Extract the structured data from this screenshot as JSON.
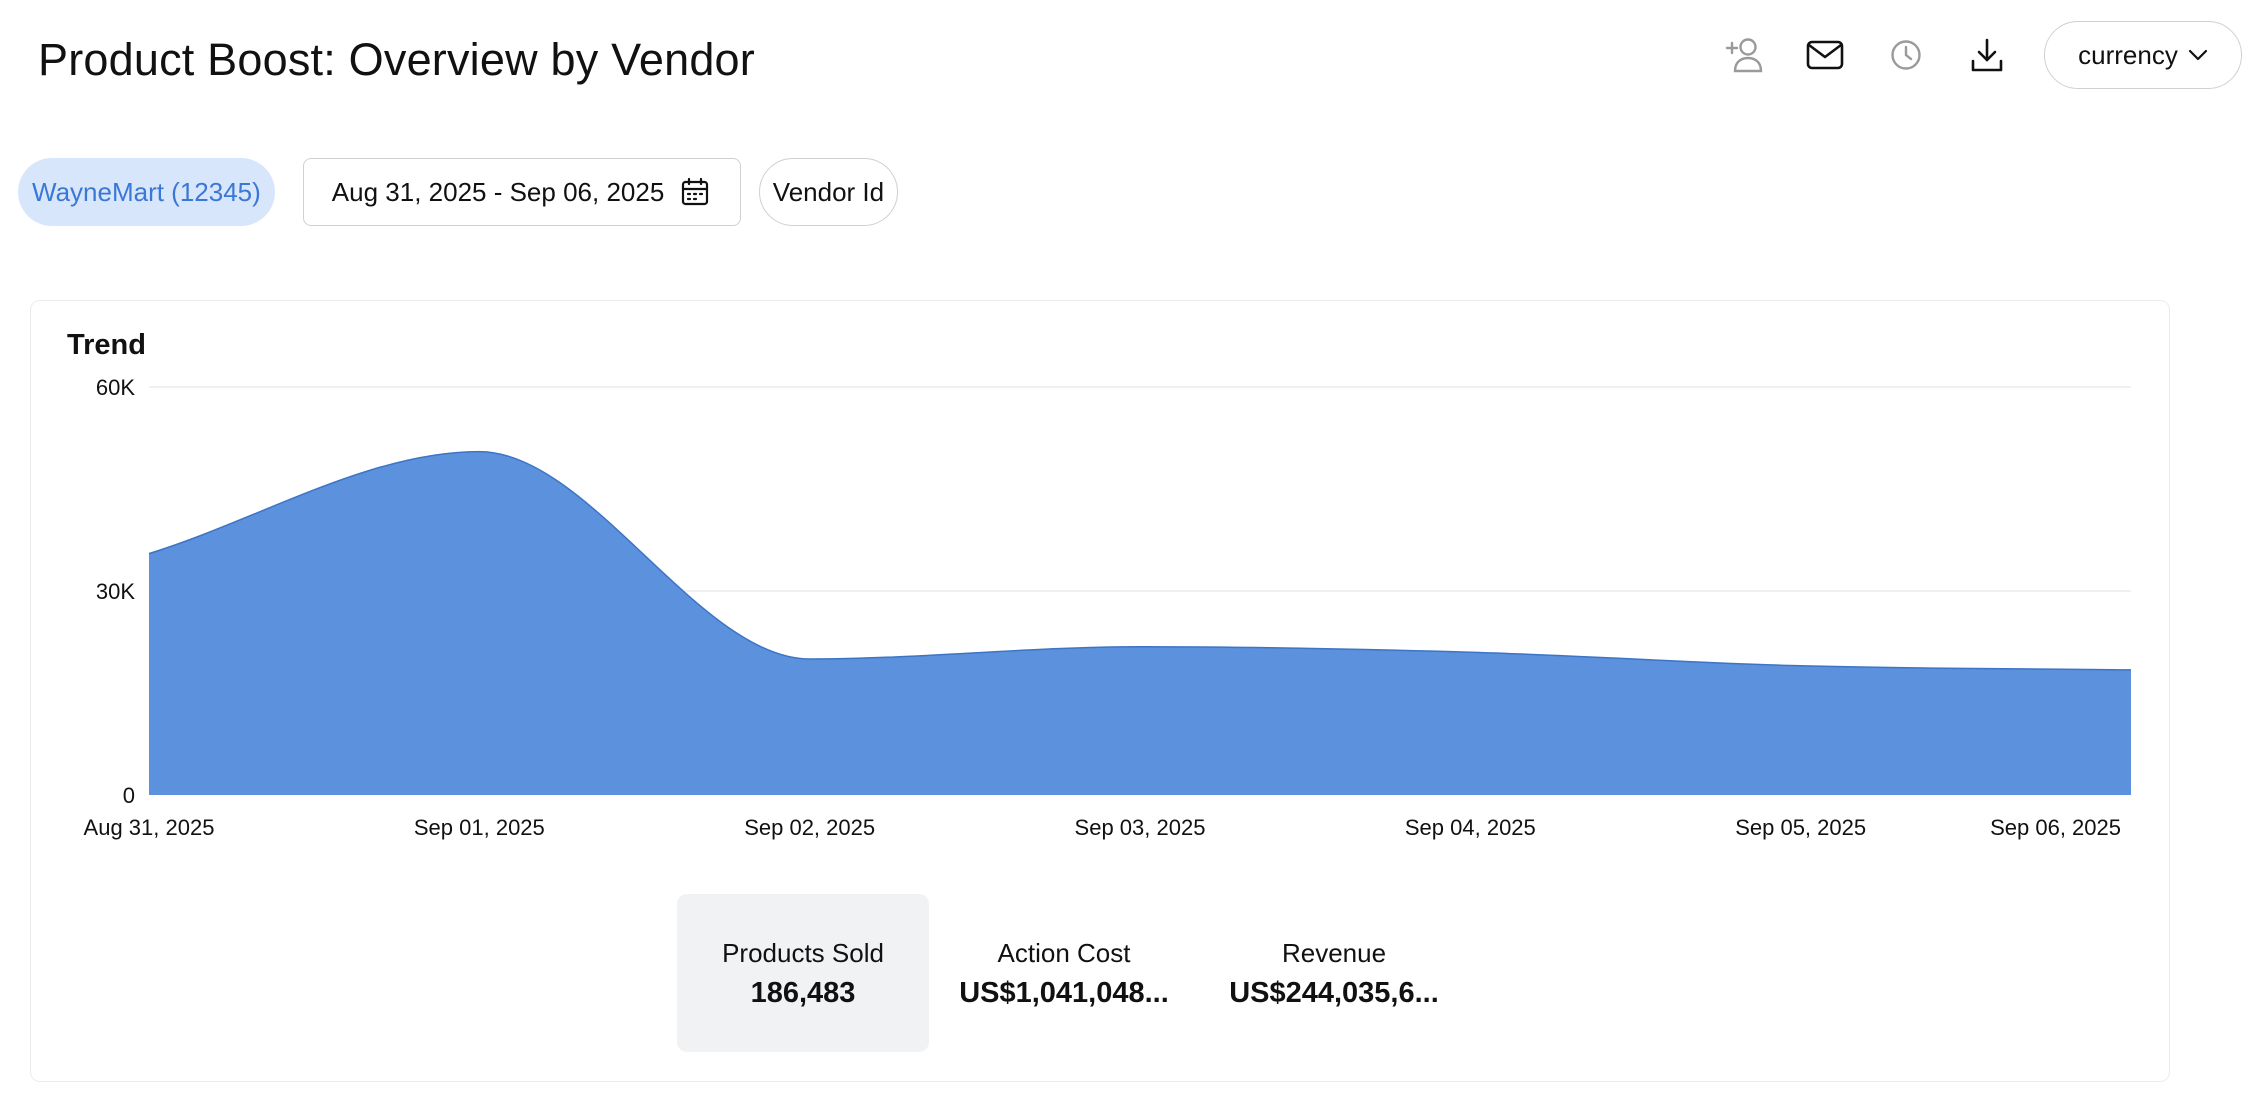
{
  "header": {
    "title": "Product Boost: Overview by Vendor",
    "currency_label": "currency",
    "icons": [
      "add-user-icon",
      "mail-icon",
      "clock-icon",
      "download-icon",
      "chevron-down-icon"
    ]
  },
  "filters": {
    "vendor_chip": "WayneMart (12345)",
    "date_range": "Aug 31, 2025 - Sep 06, 2025",
    "vendor_id_chip": "Vendor Id"
  },
  "colors": {
    "accent": "#5b91dd",
    "accent_stroke": "#3d74c6",
    "chip_bg": "#d8e6fb",
    "chip_text": "#3a78d8"
  },
  "card": {
    "title": "Trend"
  },
  "chart_data": {
    "type": "area",
    "title": "Trend",
    "x": [
      "Aug 31, 2025",
      "Sep 01, 2025",
      "Sep 02, 2025",
      "Sep 03, 2025",
      "Sep 04, 2025",
      "Sep 05, 2025",
      "Sep 06, 2025"
    ],
    "series": [
      {
        "values": [
          35500,
          50500,
          20000,
          21800,
          21000,
          19000,
          18400
        ]
      }
    ],
    "y_ticks": [
      "0",
      "30K",
      "60K"
    ],
    "ylim": [
      0,
      60000
    ],
    "grid": true,
    "legend": "none"
  },
  "metrics": [
    {
      "label": "Products Sold",
      "value": "186,483",
      "selected": true
    },
    {
      "label": "Action Cost",
      "value": "US$1,041,048...",
      "selected": false
    },
    {
      "label": "Revenue",
      "value": "US$244,035,6...",
      "selected": false
    }
  ]
}
